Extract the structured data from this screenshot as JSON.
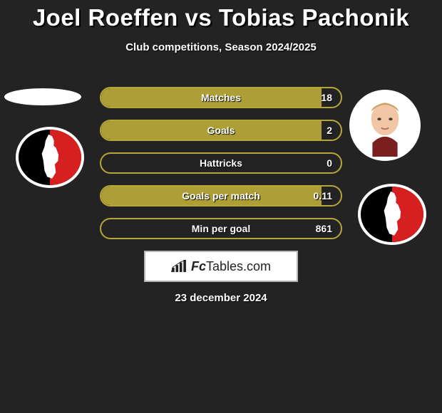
{
  "title": "Joel Roeffen vs Tobias Pachonik",
  "subtitle": "Club competitions, Season 2024/2025",
  "footer_date": "23 december 2024",
  "watermark": {
    "prefix": "Fc",
    "suffix": "Tables.com"
  },
  "colors": {
    "background": "#232324",
    "bar_border": "#b5a637",
    "bar_fill": "#b5a637",
    "club_black": "#000000",
    "club_red": "#d61f1f",
    "white": "#ffffff"
  },
  "bars": [
    {
      "label": "Matches",
      "value": "18",
      "fill_pct": 92
    },
    {
      "label": "Goals",
      "value": "2",
      "fill_pct": 92
    },
    {
      "label": "Hattricks",
      "value": "0",
      "fill_pct": 0
    },
    {
      "label": "Goals per match",
      "value": "0.11",
      "fill_pct": 92
    },
    {
      "label": "Min per goal",
      "value": "861",
      "fill_pct": 0
    }
  ]
}
